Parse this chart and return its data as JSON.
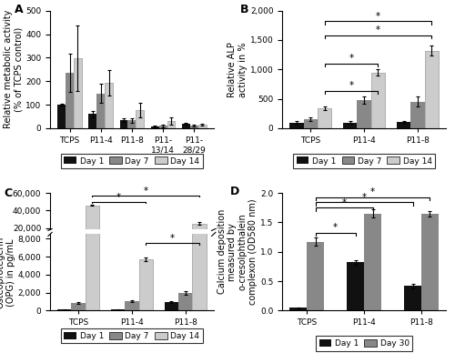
{
  "A": {
    "title": "A",
    "ylabel": "Relative metabolic activity\n(% of TCPS control)",
    "categories": [
      "TCPS",
      "P11-4",
      "P11-8",
      "P11-\n13/14",
      "P11-\n28/29"
    ],
    "day1": [
      100,
      60,
      35,
      8,
      20
    ],
    "day7": [
      235,
      148,
      33,
      10,
      10
    ],
    "day14": [
      298,
      193,
      78,
      30,
      15
    ],
    "day1_err": [
      5,
      15,
      8,
      3,
      5
    ],
    "day7_err": [
      80,
      40,
      10,
      5,
      4
    ],
    "day14_err": [
      140,
      55,
      30,
      15,
      5
    ],
    "ylim": [
      0,
      500
    ],
    "yticks": [
      0,
      100,
      200,
      300,
      400,
      500
    ]
  },
  "B": {
    "title": "B",
    "ylabel": "Relative ALP\nactivity in %",
    "categories": [
      "TCPS",
      "P11-4",
      "P11-8"
    ],
    "day1": [
      100,
      100,
      110
    ],
    "day7": [
      155,
      480,
      455
    ],
    "day14": [
      340,
      950,
      1320
    ],
    "day1_err": [
      20,
      20,
      20
    ],
    "day7_err": [
      25,
      65,
      80
    ],
    "day14_err": [
      35,
      55,
      90
    ],
    "ylim": [
      0,
      2000
    ],
    "yticks": [
      0,
      500,
      1000,
      1500,
      2000
    ],
    "yticklabels": [
      "0",
      "500",
      "1,000",
      "1,500",
      "2,000"
    ]
  },
  "C": {
    "title": "C",
    "ylabel": "Osteoprotegerin\n(OPG) in pg/mL",
    "categories": [
      "TCPS",
      "P11-4",
      "P11-8"
    ],
    "day1": [
      100,
      100,
      1000
    ],
    "day7": [
      900,
      1100,
      2000
    ],
    "day14": [
      46000,
      5700,
      25000
    ],
    "day1_err": [
      50,
      50,
      100
    ],
    "day7_err": [
      100,
      100,
      200
    ],
    "day14_err": [
      800,
      200,
      1500
    ],
    "ylim_lo": [
      0,
      8000
    ],
    "ylim_hi": [
      8001,
      60000
    ],
    "yticks_lo": [
      0,
      2000,
      4000,
      6000,
      8000
    ],
    "yticks_hi": [
      20000,
      40000,
      60000
    ],
    "yticklabels_lo": [
      "0",
      "2,000",
      "4,000",
      "6,000",
      "8,000"
    ],
    "yticklabels_hi": [
      "20,000",
      "40,000",
      "60,000"
    ]
  },
  "D": {
    "title": "D",
    "ylabel": "Calcium deposition\nmeasured by\no-cresolphthalein\ncomplexon (OD580 nm)",
    "categories": [
      "TCPS",
      "P11-4",
      "P11-8"
    ],
    "day1": [
      0.05,
      0.82,
      0.42
    ],
    "day30": [
      1.17,
      1.65,
      1.65
    ],
    "day1_err": [
      0.01,
      0.04,
      0.04
    ],
    "day30_err": [
      0.07,
      0.07,
      0.05
    ],
    "ylim": [
      0,
      2.0
    ],
    "yticks": [
      0.0,
      0.5,
      1.0,
      1.5,
      2.0
    ]
  },
  "colors": {
    "day1": "#111111",
    "day7": "#888888",
    "day14": "#cccccc",
    "day30": "#888888"
  },
  "bar_width": 0.26,
  "legend_fontsize": 6.5,
  "tick_fontsize": 6.5,
  "label_fontsize": 7,
  "title_fontsize": 9
}
